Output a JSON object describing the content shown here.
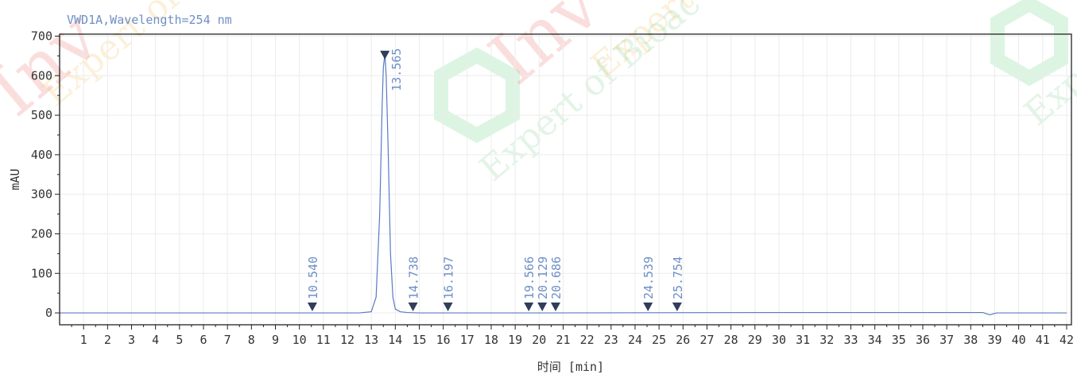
{
  "chart_data": {
    "type": "line",
    "title": "VWD1A,Wavelength=254 nm",
    "xlabel": "时间 [min]",
    "ylabel": "mAU",
    "xlim": [
      0,
      42.2
    ],
    "ylim": [
      -30,
      705
    ],
    "x_ticks": [
      1,
      2,
      3,
      4,
      5,
      6,
      7,
      8,
      9,
      10,
      11,
      12,
      13,
      14,
      15,
      16,
      17,
      18,
      19,
      20,
      21,
      22,
      23,
      24,
      25,
      26,
      27,
      28,
      29,
      30,
      31,
      32,
      33,
      34,
      35,
      36,
      37,
      38,
      39,
      40,
      41,
      42
    ],
    "y_ticks": [
      0,
      100,
      200,
      300,
      400,
      500,
      600,
      700
    ],
    "grid": true,
    "series": [
      {
        "x": [
          0,
          10.0,
          12.5,
          13.0,
          13.2,
          13.35,
          13.45,
          13.5,
          13.565,
          13.62,
          13.7,
          13.8,
          13.9,
          14.0,
          14.2,
          14.5,
          15.0,
          20.0,
          30.0,
          38.5,
          38.8,
          38.95,
          39.1,
          42.0
        ],
        "y": [
          0,
          0,
          0,
          3,
          40,
          250,
          520,
          620,
          655,
          600,
          420,
          150,
          40,
          10,
          3,
          1,
          0,
          0,
          1,
          1,
          -5,
          -2,
          0,
          0
        ]
      }
    ],
    "peaks": [
      {
        "rt": 10.54,
        "label": "10.540",
        "height": 0
      },
      {
        "rt": 13.565,
        "label": "13.565",
        "height": 655
      },
      {
        "rt": 14.738,
        "label": "14.738",
        "height": 0
      },
      {
        "rt": 16.197,
        "label": "16.197",
        "height": 0
      },
      {
        "rt": 19.566,
        "label": "19.566",
        "height": 0
      },
      {
        "rt": 20.129,
        "label": "20.129",
        "height": 0
      },
      {
        "rt": 20.686,
        "label": "20.686",
        "height": 0
      },
      {
        "rt": 24.539,
        "label": "24.539",
        "height": 0
      },
      {
        "rt": 25.754,
        "label": "25.754",
        "height": 0
      }
    ]
  },
  "watermark": {
    "brand": "Inv",
    "tagline": "Expert of Bioac",
    "tagline_2": "Exp"
  }
}
